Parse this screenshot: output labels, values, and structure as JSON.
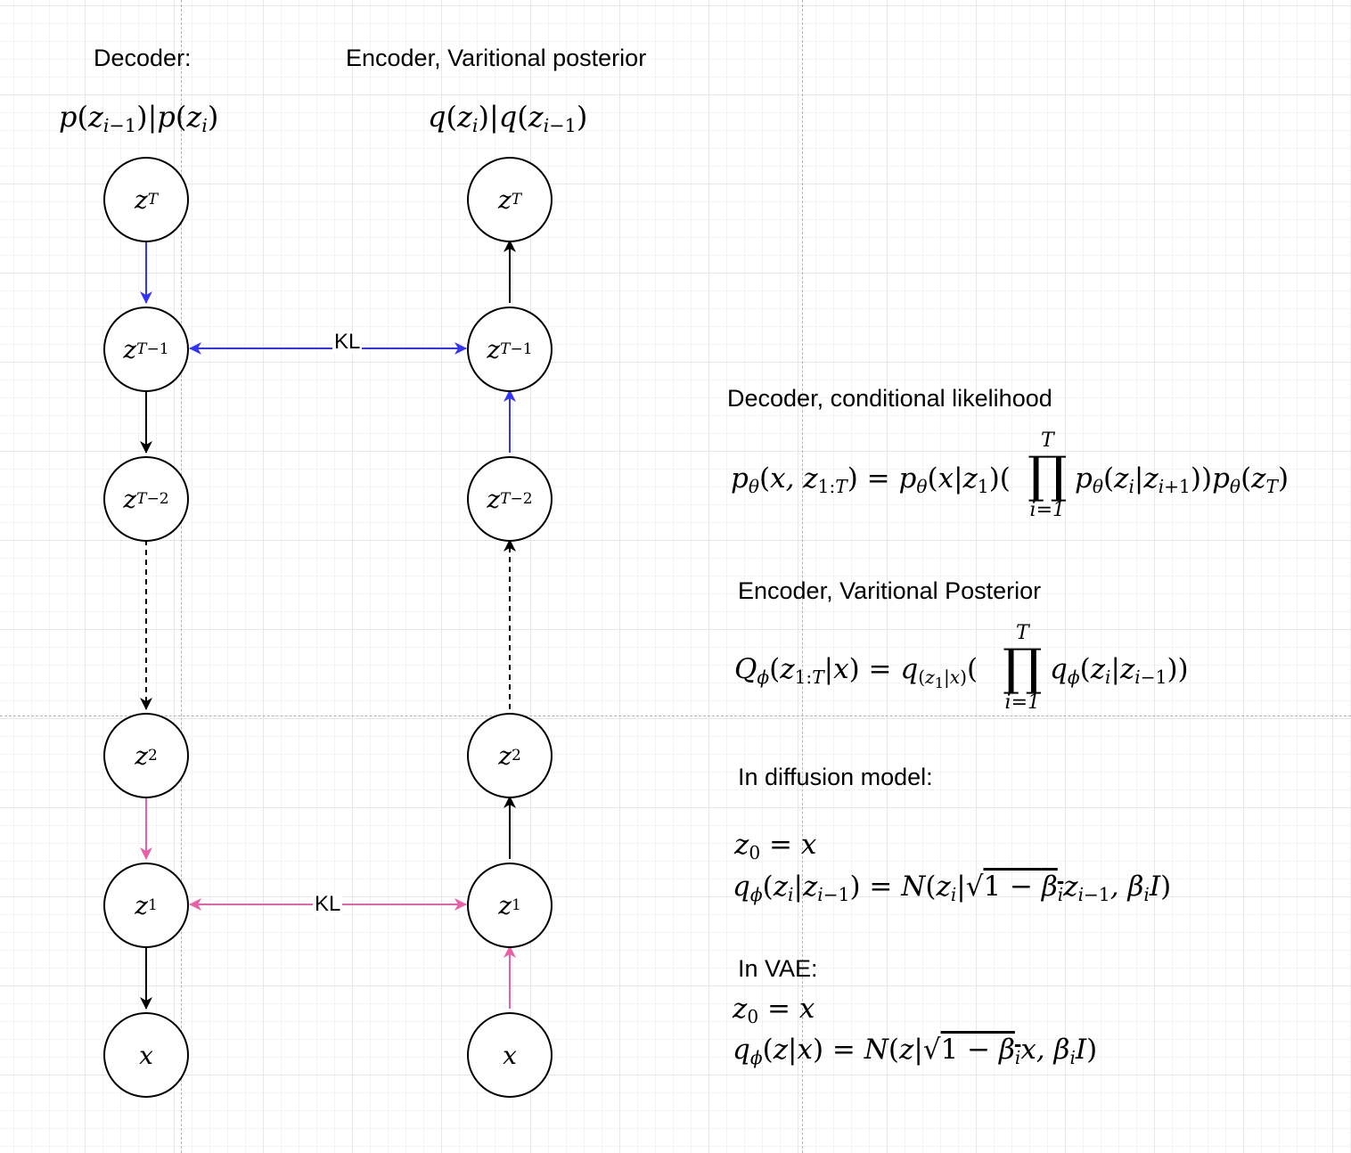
{
  "headers": {
    "decoder": "Decoder:",
    "encoder": "Encoder, Varitional posterior"
  },
  "formulas": {
    "decoder_factor": "p(zi−1)|p(zi)",
    "encoder_factor": "q(zi)|q(zi−1)"
  },
  "nodes": {
    "left": [
      "zT",
      "zT−1",
      "zT−2",
      "z2",
      "z1",
      "x"
    ],
    "right": [
      "zT",
      "zT−1",
      "zT−2",
      "z2",
      "z1",
      "x"
    ]
  },
  "edges": {
    "kl_top": "KL",
    "kl_bottom": "KL",
    "colors": {
      "blue": "#3333ff",
      "pink": "#e95fa8",
      "black": "#000000"
    }
  },
  "notes": {
    "decoder_title": "Decoder, conditional likelihood",
    "decoder_eq": "pθ(x, z1:T) = pθ(x|z1)(∏ i=1..T pθ(zi|zi+1))pθ(zT)",
    "encoder_title": "Encoder, Varitional Posterior",
    "encoder_eq": "Qϕ(z1:T|x) = q(z1|x)(∏ i=1..T qϕ(zi|zi−1))",
    "diffusion_title": "In diffusion model:",
    "diffusion_eq1": "z0 = x",
    "diffusion_eq2": "qϕ(zi|zi−1) = N(zi|√(1−βi) zi−1, βi I)",
    "vae_title": "In VAE:",
    "vae_eq1": "z0 = x",
    "vae_eq2": "qϕ(z|x) = N(z|√(1−βi) x, βi I)"
  }
}
